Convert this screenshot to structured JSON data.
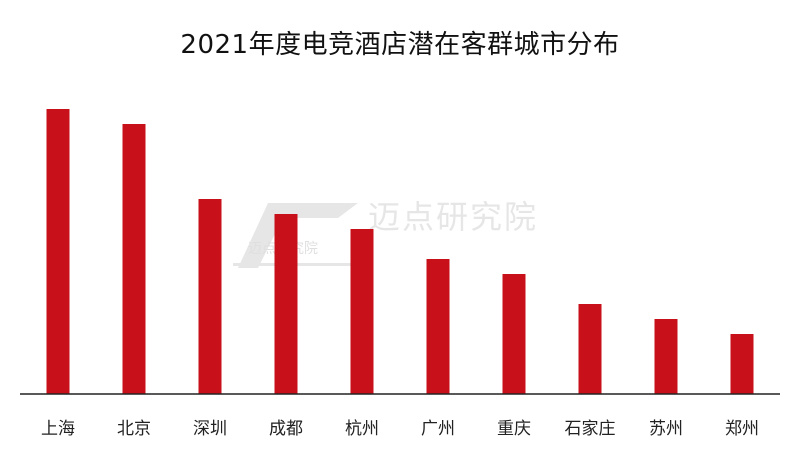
{
  "watermark": {
    "main_text": "迈点研究院",
    "small_text": "迈点研究院"
  },
  "chart_data": {
    "type": "bar",
    "title": "2021年度电竞酒店潜在客群城市分布",
    "categories": [
      "上海",
      "北京",
      "深圳",
      "成都",
      "杭州",
      "广州",
      "重庆",
      "石家庄",
      "苏州",
      "郑州"
    ],
    "values": [
      95,
      90,
      65,
      60,
      55,
      45,
      40,
      30,
      25,
      20
    ],
    "ylim": [
      0,
      100
    ],
    "bar_color": "#c8101a",
    "axis_color": "#222222",
    "grid": false,
    "xlabel": "",
    "ylabel": ""
  }
}
